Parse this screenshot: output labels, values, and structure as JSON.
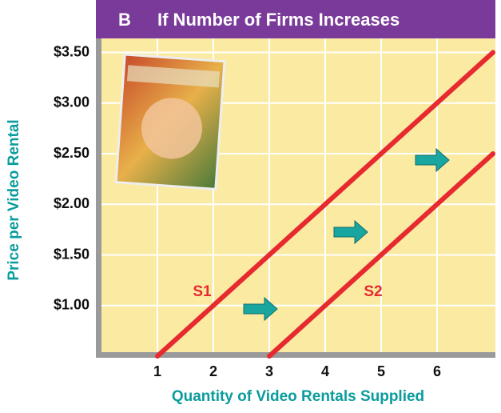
{
  "chart_data": {
    "type": "line",
    "panel_label": "B",
    "title": "If Number of Firms Increases",
    "x_label": "Quantity of Video Rentals Supplied",
    "y_label": "Price per Video Rental",
    "series": [
      {
        "name": "S1",
        "color": "#e62a2f",
        "x": [
          1,
          7
        ],
        "values": [
          0.5,
          3.5
        ]
      },
      {
        "name": "S2",
        "color": "#e62a2f",
        "x": [
          3,
          7
        ],
        "values": [
          0.5,
          2.5
        ]
      }
    ],
    "xlim": [
      0,
      7
    ],
    "ylim": [
      0.5,
      3.5
    ],
    "xticks": [
      1,
      2,
      3,
      4,
      5,
      6
    ],
    "yticks": [
      {
        "value": 1.0,
        "label": "$1.00"
      },
      {
        "value": 1.5,
        "label": "$1.50"
      },
      {
        "value": 2.0,
        "label": "$2.00"
      },
      {
        "value": 2.5,
        "label": "$2.50"
      },
      {
        "value": 3.0,
        "label": "$3.00"
      },
      {
        "value": 3.5,
        "label": "$3.50"
      }
    ],
    "grid": true
  }
}
